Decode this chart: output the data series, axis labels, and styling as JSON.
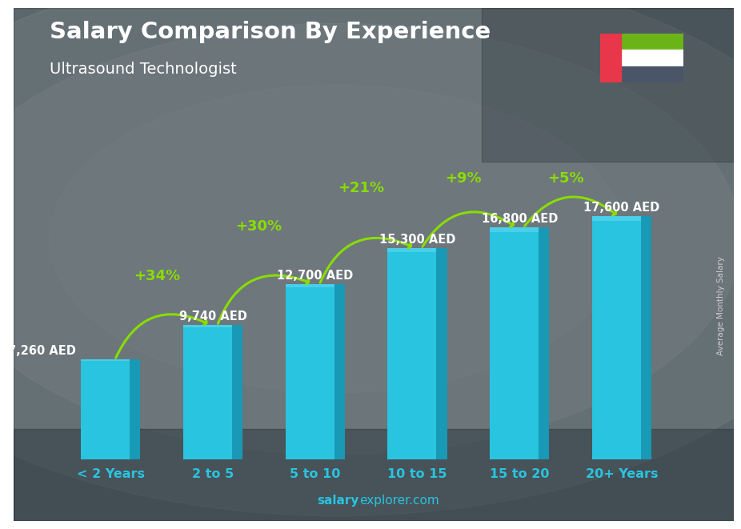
{
  "title": "Salary Comparison By Experience",
  "subtitle": "Ultrasound Technologist",
  "categories": [
    "< 2 Years",
    "2 to 5",
    "5 to 10",
    "10 to 15",
    "15 to 20",
    "20+ Years"
  ],
  "values": [
    7260,
    9740,
    12700,
    15300,
    16800,
    17600
  ],
  "value_labels": [
    "7,260 AED",
    "9,740 AED",
    "12,700 AED",
    "15,300 AED",
    "16,800 AED",
    "17,600 AED"
  ],
  "pct_labels": [
    "+34%",
    "+30%",
    "+21%",
    "+9%",
    "+5%"
  ],
  "bar_color": "#29c4e0",
  "bar_color_dark": "#1899b5",
  "bar_color_light": "#5dd8f0",
  "title_color": "#ffffff",
  "subtitle_color": "#ffffff",
  "category_color": "#29c4e0",
  "value_label_color": "#ffffff",
  "pct_color": "#88dd00",
  "arrow_color": "#88dd00",
  "bg_color": "#6b7c8a",
  "footer_bold": "salary",
  "footer_regular": "explorer.com",
  "side_label": "Average Monthly Salary",
  "ylim_max": 23000,
  "bar_width": 0.58
}
